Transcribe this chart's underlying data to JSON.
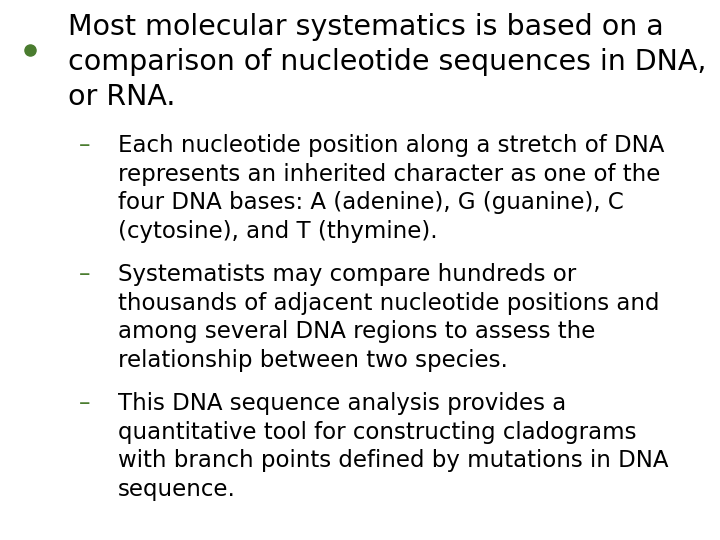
{
  "background_color": "#ffffff",
  "bullet_color": "#4a7c2f",
  "dash_color": "#4a7c2f",
  "text_color": "#000000",
  "bullet_text": "Most molecular systematics is based on a\ncomparison of nucleotide sequences in DNA,\nor RNA.",
  "sub_bullets": [
    "Each nucleotide position along a stretch of DNA\nrepresents an inherited character as one of the\nfour DNA bases: A (adenine), G (guanine), C\n(cytosine), and T (thymine).",
    "Systematists may compare hundreds or\nthousands of adjacent nucleotide positions and\namong several DNA regions to assess the\nrelationship between two species.",
    "This DNA sequence analysis provides a\nquantitative tool for constructing cladograms\nwith branch points defined by mutations in DNA\nsequence."
  ],
  "bullet_fontsize": 20.5,
  "sub_fontsize": 16.5,
  "figsize": [
    7.2,
    5.4
  ],
  "dpi": 100
}
